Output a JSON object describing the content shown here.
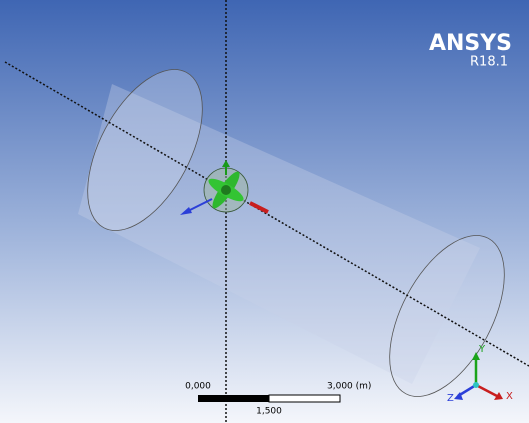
{
  "logo": {
    "brand": "ANSYS",
    "version": "R18.1"
  },
  "scale_bar": {
    "start": "0,000",
    "end": "3,000 (m)",
    "middle": "1,500"
  },
  "triad": {
    "y": "Y",
    "z": "Z",
    "x": "X"
  }
}
